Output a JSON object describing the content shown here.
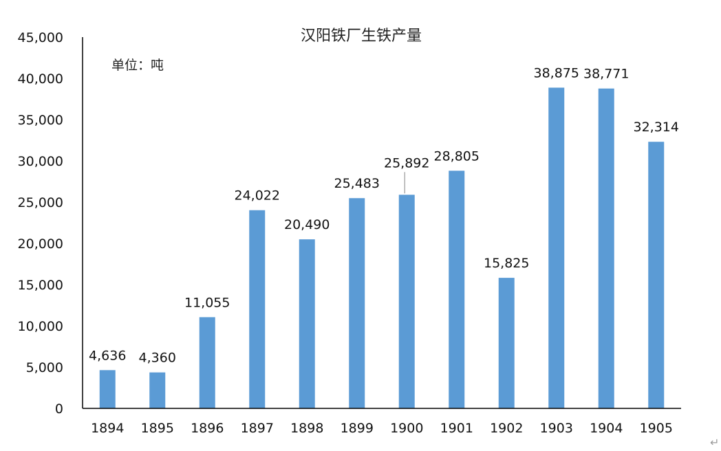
{
  "chart_data": {
    "type": "bar",
    "title": "汉阳铁厂生铁产量",
    "unit_note": "单位：吨",
    "categories": [
      "1894",
      "1895",
      "1896",
      "1897",
      "1898",
      "1899",
      "1900",
      "1901",
      "1902",
      "1903",
      "1904",
      "1905"
    ],
    "values": [
      4636,
      4360,
      11055,
      24022,
      20490,
      25483,
      25892,
      28805,
      15825,
      38875,
      38771,
      32314
    ],
    "data_labels": [
      "4,636",
      "4,360",
      "11,055",
      "24,022",
      "20,490",
      "25,483",
      "25,892",
      "28,805",
      "15,825",
      "38,875",
      "38,771",
      "32,314"
    ],
    "yticks": [
      "0",
      "5,000",
      "10,000",
      "15,000",
      "20,000",
      "25,000",
      "30,000",
      "35,000",
      "40,000",
      "45,000"
    ],
    "ylim": [
      0,
      45000
    ],
    "bar_color": "#5b9bd5",
    "grid": false,
    "legend": "none"
  },
  "paragraph_mark": "↵"
}
